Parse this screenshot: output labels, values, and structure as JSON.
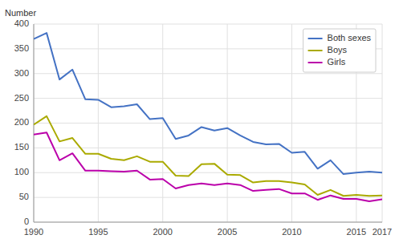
{
  "chart_data": {
    "type": "line",
    "y_label": "Number",
    "x": [
      1990,
      1991,
      1992,
      1993,
      1994,
      1995,
      1996,
      1997,
      1998,
      1999,
      2000,
      2001,
      2002,
      2003,
      2004,
      2005,
      2006,
      2007,
      2008,
      2009,
      2010,
      2011,
      2012,
      2013,
      2014,
      2015,
      2016,
      2017
    ],
    "series": [
      {
        "name": "Both sexes",
        "color": "#4472C4",
        "values": [
          370,
          382,
          288,
          308,
          248,
          247,
          232,
          234,
          238,
          208,
          210,
          168,
          175,
          192,
          185,
          190,
          175,
          162,
          157,
          158,
          140,
          142,
          108,
          125,
          97,
          100,
          102,
          100
        ]
      },
      {
        "name": "Boys",
        "color": "#AAAA00",
        "values": [
          197,
          214,
          163,
          170,
          138,
          138,
          128,
          125,
          133,
          122,
          122,
          94,
          93,
          117,
          118,
          96,
          95,
          80,
          83,
          83,
          80,
          76,
          55,
          65,
          53,
          55,
          53,
          54
        ]
      },
      {
        "name": "Girls",
        "color": "#BB00AA",
        "values": [
          177,
          181,
          125,
          139,
          104,
          104,
          103,
          102,
          104,
          86,
          87,
          68,
          75,
          78,
          75,
          78,
          75,
          63,
          65,
          67,
          58,
          58,
          45,
          54,
          47,
          47,
          42,
          46
        ]
      }
    ],
    "xlim": [
      1990,
      2017
    ],
    "xticks": [
      1990,
      1995,
      2000,
      2005,
      2010,
      2015,
      2017
    ],
    "ylim": [
      0,
      400
    ],
    "yticks": [
      0,
      50,
      100,
      150,
      200,
      250,
      300,
      350,
      400
    ],
    "grid": true,
    "legend": "upper right"
  }
}
